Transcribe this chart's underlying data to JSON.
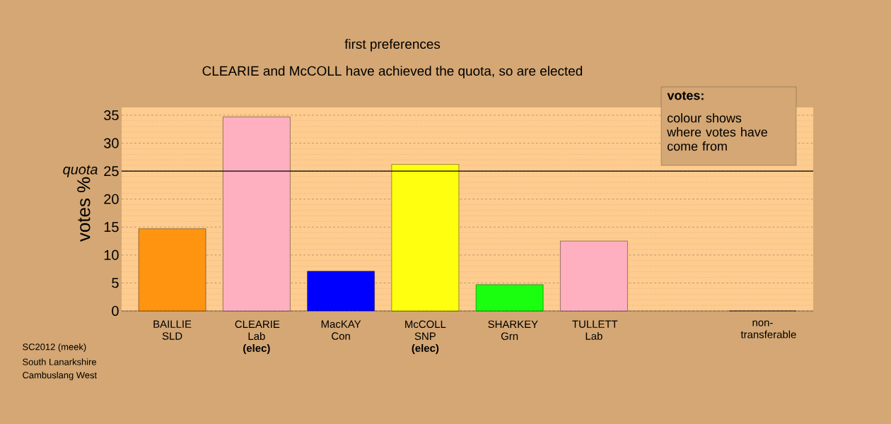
{
  "chart_data": {
    "type": "bar",
    "title": "first preferences",
    "subtitle": "CLEARIE and McCOLL have achieved the quota, so are elected",
    "ylabel": "votes %",
    "categories": [
      "BAILLIE SLD",
      "CLEARIE Lab **(elec)**",
      "MacKAY Con",
      "McCOLL SNP **(elec)**",
      "SHARKEY Grn",
      "TULLETT Lab",
      null,
      "non-transferable"
    ],
    "values": [
      14.7,
      34.7,
      7.1,
      26.2,
      4.7,
      12.5,
      null,
      0
    ],
    "colors": [
      "#ff9410",
      "#ffb0c0",
      "#0000ff",
      "#ffff10",
      "#1aff10",
      "#ffb0c0",
      "#ffffff",
      "#ffffff"
    ],
    "ylim": [
      0,
      36.4
    ],
    "yticks": [
      0,
      5,
      10,
      15,
      20,
      25,
      30,
      35
    ],
    "grid": "y",
    "ref_lines": [
      {
        "axis": "y",
        "value": 25,
        "label": "quota",
        "color": "#000000"
      }
    ],
    "annotations": [
      "votes:",
      "colour shows where votes have come from",
      "SC2012 (meek)",
      "South Lanarkshire",
      "Cambuslang West"
    ]
  }
}
